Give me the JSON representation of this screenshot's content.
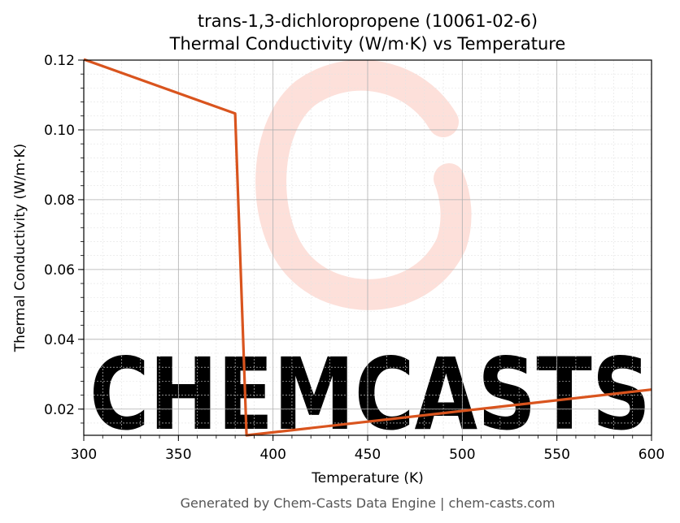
{
  "chart_data": {
    "type": "line",
    "title": "trans-1,3-dichloropropene (10061-02-6)",
    "subtitle": "Thermal Conductivity (W/m·K) vs Temperature",
    "xlabel": "Temperature (K)",
    "ylabel": "Thermal Conductivity (W/m·K)",
    "xlim": [
      300,
      600
    ],
    "ylim": [
      0.0125,
      0.12
    ],
    "xticks": [
      300,
      350,
      400,
      450,
      500,
      550,
      600
    ],
    "xtick_labels": [
      "300",
      "350",
      "400",
      "450",
      "500",
      "550",
      "600"
    ],
    "yticks": [
      0.02,
      0.04,
      0.06,
      0.08,
      0.1,
      0.12
    ],
    "ytick_labels": [
      "0.02",
      "0.04",
      "0.06",
      "0.08",
      "0.10",
      "0.12"
    ],
    "grid": true,
    "series": [
      {
        "color": "#d9541e",
        "x": [
          300,
          380,
          386,
          600
        ],
        "y": [
          0.1202,
          0.1047,
          0.0125,
          0.0256
        ]
      }
    ]
  },
  "watermark": {
    "text": "CHEMCASTS",
    "color": "#fde0da"
  },
  "footer": "Generated by Chem-Casts Data Engine | chem-casts.com"
}
